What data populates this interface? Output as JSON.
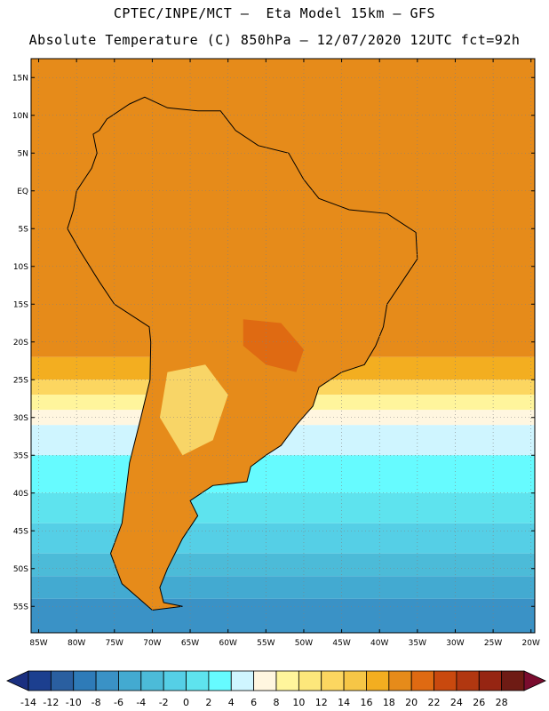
{
  "header": {
    "title_line1": "CPTEC/INPE/MCT –  Eta Model 15km – GFS",
    "title_line2": "Absolute Temperature (C) 850hPa – 12/07/2020 12UTC fct=92h"
  },
  "map": {
    "lon_range": [
      -86,
      -19.5
    ],
    "lat_range": [
      -58.5,
      17.5
    ],
    "lat_ticks": [
      {
        "value": 15,
        "label": "15N"
      },
      {
        "value": 10,
        "label": "10N"
      },
      {
        "value": 5,
        "label": "5N"
      },
      {
        "value": 0,
        "label": "EQ"
      },
      {
        "value": -5,
        "label": "5S"
      },
      {
        "value": -10,
        "label": "10S"
      },
      {
        "value": -15,
        "label": "15S"
      },
      {
        "value": -20,
        "label": "20S"
      },
      {
        "value": -25,
        "label": "25S"
      },
      {
        "value": -30,
        "label": "30S"
      },
      {
        "value": -35,
        "label": "35S"
      },
      {
        "value": -40,
        "label": "40S"
      },
      {
        "value": -45,
        "label": "45S"
      },
      {
        "value": -50,
        "label": "50S"
      },
      {
        "value": -55,
        "label": "55S"
      }
    ],
    "lon_ticks": [
      {
        "value": -85,
        "label": "85W"
      },
      {
        "value": -80,
        "label": "80W"
      },
      {
        "value": -75,
        "label": "75W"
      },
      {
        "value": -70,
        "label": "70W"
      },
      {
        "value": -65,
        "label": "65W"
      },
      {
        "value": -60,
        "label": "60W"
      },
      {
        "value": -55,
        "label": "55W"
      },
      {
        "value": -50,
        "label": "50W"
      },
      {
        "value": -45,
        "label": "45W"
      },
      {
        "value": -40,
        "label": "40W"
      },
      {
        "value": -35,
        "label": "35W"
      },
      {
        "value": -30,
        "label": "30W"
      },
      {
        "value": -25,
        "label": "25W"
      },
      {
        "value": -20,
        "label": "20W"
      }
    ],
    "temperature_bands_by_lat": [
      {
        "lat_from": 17.5,
        "lat_to": -22,
        "value_c": 18
      },
      {
        "lat_from": -22,
        "lat_to": -25,
        "value_c": 16
      },
      {
        "lat_from": -25,
        "lat_to": -27,
        "value_c": 12
      },
      {
        "lat_from": -27,
        "lat_to": -29,
        "value_c": 8
      },
      {
        "lat_from": -29,
        "lat_to": -31,
        "value_c": 6
      },
      {
        "lat_from": -31,
        "lat_to": -35,
        "value_c": 4
      },
      {
        "lat_from": -35,
        "lat_to": -40,
        "value_c": 2
      },
      {
        "lat_from": -40,
        "lat_to": -44,
        "value_c": 0
      },
      {
        "lat_from": -44,
        "lat_to": -48,
        "value_c": -2
      },
      {
        "lat_from": -48,
        "lat_to": -51,
        "value_c": -4
      },
      {
        "lat_from": -51,
        "lat_to": -54,
        "value_c": -6
      },
      {
        "lat_from": -54,
        "lat_to": -58.5,
        "value_c": -8
      }
    ],
    "continent_fill_value_c": 18,
    "warm_region_value_c": 20,
    "cold_region_value_c": 10,
    "coastline_points": [
      [
        -77,
        8
      ],
      [
        -76,
        9.5
      ],
      [
        -73,
        11.5
      ],
      [
        -71,
        12.4
      ],
      [
        -68,
        11
      ],
      [
        -64,
        10.6
      ],
      [
        -61,
        10.6
      ],
      [
        -59,
        8
      ],
      [
        -56,
        6
      ],
      [
        -52,
        5
      ],
      [
        -50,
        1.5
      ],
      [
        -48,
        -1
      ],
      [
        -44,
        -2.5
      ],
      [
        -39,
        -3
      ],
      [
        -35.2,
        -5.5
      ],
      [
        -35,
        -9
      ],
      [
        -37,
        -12
      ],
      [
        -39,
        -15
      ],
      [
        -39.5,
        -18
      ],
      [
        -40.5,
        -20.5
      ],
      [
        -42,
        -23
      ],
      [
        -45,
        -24
      ],
      [
        -48,
        -26
      ],
      [
        -48.8,
        -28.5
      ],
      [
        -51,
        -31
      ],
      [
        -53,
        -33.7
      ],
      [
        -55,
        -35
      ],
      [
        -57,
        -36.5
      ],
      [
        -57.5,
        -38.5
      ],
      [
        -62,
        -39
      ],
      [
        -65,
        -41
      ],
      [
        -64,
        -43
      ],
      [
        -66,
        -46
      ],
      [
        -68,
        -50
      ],
      [
        -69,
        -52.5
      ],
      [
        -68.5,
        -54.5
      ],
      [
        -66,
        -55
      ],
      [
        -70,
        -55.5
      ],
      [
        -74,
        -52
      ],
      [
        -75.5,
        -48
      ],
      [
        -74,
        -44
      ],
      [
        -73.5,
        -40
      ],
      [
        -73,
        -36
      ],
      [
        -71.5,
        -30
      ],
      [
        -70.3,
        -25
      ],
      [
        -70.2,
        -20
      ],
      [
        -70.4,
        -18
      ],
      [
        -75,
        -15
      ],
      [
        -77,
        -12
      ],
      [
        -79.5,
        -8
      ],
      [
        -81.2,
        -5
      ],
      [
        -80.4,
        -2.5
      ],
      [
        -80,
        0
      ],
      [
        -79,
        1.5
      ],
      [
        -78,
        3
      ],
      [
        -77.3,
        5
      ],
      [
        -77.8,
        7.5
      ]
    ]
  },
  "colorbar": {
    "colors": [
      "#1c3f8f",
      "#2a5fa0",
      "#2e7bb8",
      "#3a92c6",
      "#43aad1",
      "#4cbbd8",
      "#55cfe6",
      "#5ee3ee",
      "#66fbff",
      "#cff5ff",
      "#fff6e0",
      "#fff59c",
      "#fde77b",
      "#fcd660",
      "#f6c646",
      "#f3ae20",
      "#e68b1a",
      "#df6a12",
      "#c9490e",
      "#b13710",
      "#962512",
      "#6e1b14"
    ],
    "under_color": "#1a2f80",
    "over_color": "#7a0c2e",
    "labels": [
      "-14",
      "-12",
      "-10",
      "-8",
      "-6",
      "-4",
      "-2",
      "0",
      "2",
      "4",
      "6",
      "8",
      "10",
      "12",
      "14",
      "16",
      "18",
      "20",
      "22",
      "24",
      "26",
      "28"
    ]
  }
}
